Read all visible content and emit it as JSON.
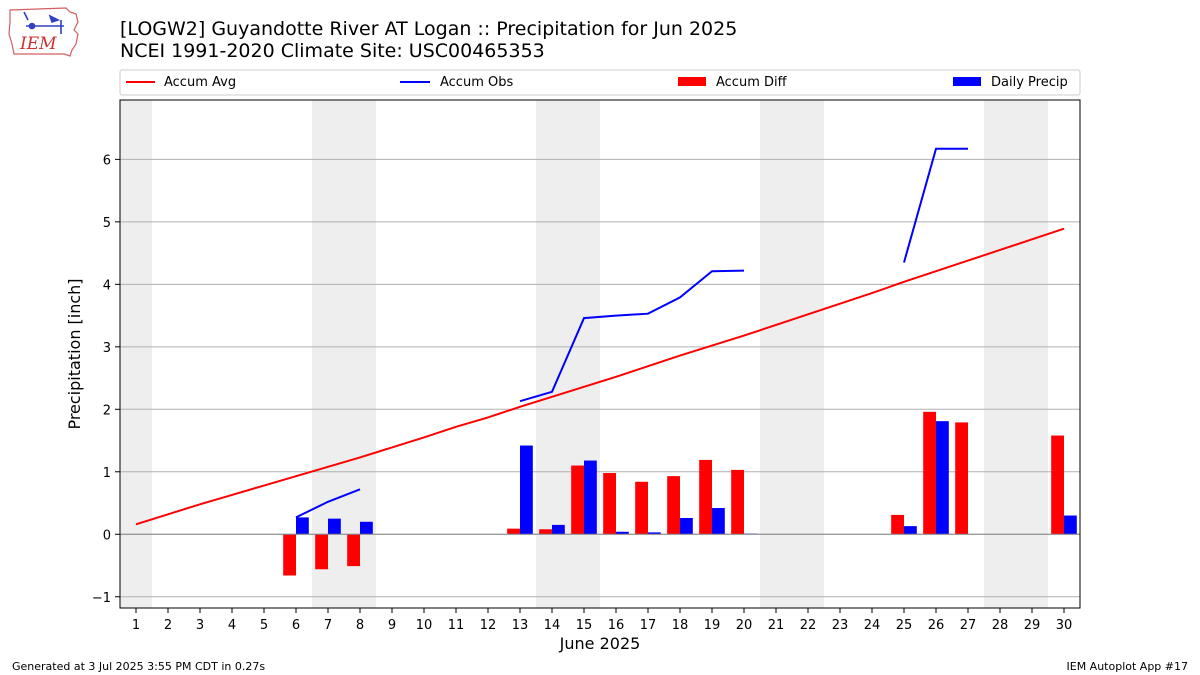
{
  "header": {
    "title_line1": "[LOGW2] Guyandotte River  AT Logan :: Precipitation for Jun 2025",
    "title_line2": "NCEI 1991-2020 Climate Site: USC00465353",
    "logo_text": "IEM"
  },
  "footer": {
    "generated": "Generated at 3 Jul 2025 3:55 PM CDT in 0.27s",
    "app": "IEM Autoplot App #17"
  },
  "colors": {
    "avg": "#ff0000",
    "obs": "#0000ff",
    "diff": "#ff0000",
    "daily": "#0000ff",
    "weekend": "#eeeeee",
    "grid": "#b0b0b0"
  },
  "chart_data": {
    "type": "bar",
    "xlabel": "June 2025",
    "ylabel": "Precipitation [inch]",
    "xlim": [
      0.5,
      30.5
    ],
    "ylim": [
      -1.18,
      6.95
    ],
    "yticks": [
      -1,
      0,
      1,
      2,
      3,
      4,
      5,
      6
    ],
    "x": [
      1,
      2,
      3,
      4,
      5,
      6,
      7,
      8,
      9,
      10,
      11,
      12,
      13,
      14,
      15,
      16,
      17,
      18,
      19,
      20,
      21,
      22,
      23,
      24,
      25,
      26,
      27,
      28,
      29,
      30
    ],
    "weekend_days": [
      1,
      7,
      8,
      14,
      15,
      21,
      22,
      28,
      29
    ],
    "legend": [
      "Accum Avg",
      "Accum Obs",
      "Accum Diff",
      "Daily Precip"
    ],
    "series": [
      {
        "name": "Accum Avg",
        "kind": "line",
        "values": [
          0.16,
          0.32,
          0.48,
          0.63,
          0.78,
          0.93,
          1.08,
          1.23,
          1.39,
          1.55,
          1.72,
          1.87,
          2.04,
          2.2,
          2.36,
          2.52,
          2.69,
          2.86,
          3.02,
          3.18,
          3.35,
          3.52,
          3.69,
          3.86,
          4.04,
          4.21,
          4.38,
          4.55,
          4.72,
          4.89
        ]
      },
      {
        "name": "Accum Obs",
        "kind": "line",
        "values": [
          null,
          null,
          null,
          null,
          null,
          0.27,
          0.52,
          0.72,
          null,
          null,
          null,
          null,
          2.13,
          2.28,
          3.46,
          3.5,
          3.53,
          3.79,
          4.21,
          4.22,
          null,
          null,
          null,
          null,
          4.35,
          6.17,
          6.17,
          null,
          null,
          null
        ]
      },
      {
        "name": "Accum Diff",
        "kind": "bar",
        "values": [
          null,
          null,
          null,
          null,
          null,
          -0.66,
          -0.56,
          -0.51,
          null,
          null,
          null,
          null,
          0.09,
          0.08,
          1.1,
          0.98,
          0.84,
          0.93,
          1.19,
          1.03,
          null,
          null,
          null,
          null,
          0.31,
          1.96,
          1.79,
          null,
          null,
          1.58
        ]
      },
      {
        "name": "Daily Precip",
        "kind": "bar",
        "values": [
          null,
          null,
          null,
          null,
          null,
          0.27,
          0.25,
          0.2,
          null,
          null,
          null,
          null,
          1.42,
          0.15,
          1.18,
          0.04,
          0.03,
          0.26,
          0.42,
          0.01,
          null,
          null,
          null,
          null,
          0.13,
          1.81,
          null,
          null,
          null,
          0.3
        ]
      }
    ]
  }
}
